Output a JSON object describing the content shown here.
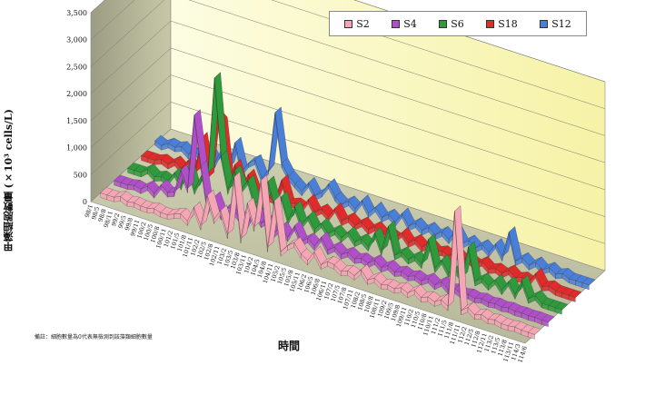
{
  "chart_data": {
    "type": "area",
    "title": "",
    "xlabel": "時間",
    "ylabel": "甲藻細胞數量 (×10³ cells/L)",
    "ylim": [
      0,
      3500
    ],
    "yticks": [
      "0",
      "500",
      "1,000",
      "1,500",
      "2,000",
      "2,500",
      "3,000",
      "3,500"
    ],
    "grid": true,
    "legend_position": "top-right",
    "footnote": "備註：細胞數量為0代表無檢測到該藻類細胞數量",
    "categories": [
      "98/1",
      "98/4",
      "98/7",
      "98/10",
      "99/1",
      "99/4",
      "99/7",
      "99/10",
      "100/1",
      "100/4",
      "100/7",
      "100/10",
      "101/1",
      "101/4",
      "101/7",
      "101/10",
      "102/1",
      "102/4",
      "102/7",
      "102/10",
      "103/1",
      "103/4",
      "103/7",
      "103/10",
      "104/1",
      "104/4",
      "104/7",
      "104/10",
      "105/1",
      "105/4",
      "105/7",
      "105/10",
      "106/1",
      "106/4",
      "106/7",
      "106/10",
      "107/1",
      "107/4",
      "107/7",
      "107/10",
      "108/1",
      "108/4",
      "108/7",
      "108/10",
      "109/1",
      "109/4",
      "109/7",
      "109/10",
      "110/1",
      "110/4",
      "110/7",
      "110/10",
      "111/1",
      "111/4",
      "111/7",
      "111/10",
      "112/1",
      "112/4",
      "112/7",
      "112/10",
      "113/1",
      "113/4",
      "113/7",
      "113/10",
      "114/1",
      "114/4"
    ],
    "tick_labels": [
      "98/1",
      "98/5",
      "98/8",
      "98/11",
      "99/2",
      "99/5",
      "99/8",
      "99/11",
      "100/2",
      "100/5",
      "100/8",
      "100/11",
      "101/2",
      "101/5",
      "101/8",
      "101/11",
      "102/2",
      "102/5",
      "102/8",
      "102/11",
      "103/2",
      "103/5",
      "103/8",
      "103/11",
      "104/2",
      "104/5",
      "104/8",
      "104/11",
      "105/2",
      "105/5",
      "105/8",
      "105/11",
      "106/2",
      "106/5",
      "106/8",
      "106/11",
      "107/2",
      "107/5",
      "107/8",
      "107/11",
      "108/2",
      "108/5",
      "108/8",
      "108/11",
      "109/2",
      "109/5",
      "109/8",
      "109/11",
      "110/2",
      "110/5",
      "110/8",
      "110/11",
      "111/2",
      "111/5",
      "111/8",
      "111/11",
      "112/2",
      "112/5",
      "112/8",
      "112/11",
      "113/2",
      "113/5",
      "113/8",
      "113/11",
      "114/3",
      "114/6"
    ],
    "series": [
      {
        "name": "S2",
        "color": "#f4a6b4",
        "values": [
          0,
          0,
          0,
          50,
          0,
          20,
          0,
          0,
          30,
          0,
          0,
          50,
          100,
          0,
          300,
          0,
          600,
          200,
          400,
          0,
          1100,
          0,
          700,
          300,
          1200,
          0,
          900,
          0,
          150,
          250,
          80,
          0,
          200,
          0,
          100,
          80,
          0,
          50,
          0,
          150,
          0,
          80,
          0,
          30,
          0,
          60,
          0,
          100,
          0,
          50,
          0,
          80,
          0,
          1800,
          0,
          100,
          0,
          50,
          0,
          30,
          0,
          0,
          20,
          0,
          0,
          0
        ]
      },
      {
        "name": "S4",
        "color": "#b050c8",
        "values": [
          0,
          0,
          0,
          30,
          0,
          100,
          0,
          200,
          100,
          150,
          600,
          300,
          1700,
          800,
          0,
          300,
          0,
          200,
          150,
          50,
          0,
          300,
          100,
          200,
          0,
          150,
          0,
          250,
          0,
          100,
          0,
          200,
          0,
          100,
          0,
          80,
          0,
          50,
          0,
          100,
          0,
          80,
          0,
          50,
          0,
          50,
          0,
          80,
          0,
          100,
          0,
          50,
          0,
          30,
          0,
          30,
          0,
          20,
          0,
          20,
          0,
          10,
          0,
          10,
          0,
          0
        ]
      },
      {
        "name": "S6",
        "color": "#2e9a3c",
        "values": [
          0,
          0,
          0,
          100,
          0,
          50,
          0,
          200,
          0,
          400,
          0,
          300,
          400,
          2200,
          800,
          200,
          600,
          300,
          500,
          100,
          0,
          600,
          200,
          400,
          0,
          300,
          0,
          200,
          0,
          150,
          0,
          100,
          0,
          150,
          0,
          100,
          0,
          300,
          0,
          500,
          0,
          100,
          0,
          100,
          0,
          500,
          0,
          200,
          0,
          100,
          0,
          600,
          0,
          100,
          0,
          150,
          0,
          200,
          0,
          300,
          0,
          100,
          0,
          0,
          0,
          0
        ]
      },
      {
        "name": "S18",
        "color": "#e12a2a",
        "values": [
          0,
          0,
          0,
          50,
          0,
          100,
          0,
          200,
          0,
          700,
          0,
          1200,
          1100,
          0,
          400,
          0,
          300,
          0,
          100,
          0,
          0,
          400,
          0,
          50,
          0,
          200,
          0,
          100,
          0,
          200,
          0,
          100,
          0,
          100,
          0,
          100,
          0,
          50,
          0,
          150,
          0,
          100,
          0,
          100,
          0,
          50,
          0,
          100,
          0,
          50,
          0,
          100,
          0,
          50,
          0,
          100,
          0,
          50,
          0,
          200,
          0,
          50,
          0,
          0,
          0,
          0
        ]
      },
      {
        "name": "S12",
        "color": "#4a7fd8",
        "values": [
          50,
          0,
          80,
          50,
          100,
          0,
          100,
          0,
          200,
          0,
          300,
          0,
          500,
          0,
          200,
          300,
          0,
          200,
          1300,
          400,
          200,
          100,
          0,
          200,
          0,
          100,
          300,
          100,
          0,
          100,
          0,
          200,
          0,
          150,
          0,
          100,
          0,
          200,
          0,
          100,
          0,
          100,
          0,
          100,
          0,
          200,
          0,
          100,
          0,
          100,
          0,
          200,
          0,
          500,
          0,
          100,
          0,
          100,
          0,
          80,
          0,
          50,
          0,
          0,
          0,
          0
        ]
      }
    ]
  }
}
